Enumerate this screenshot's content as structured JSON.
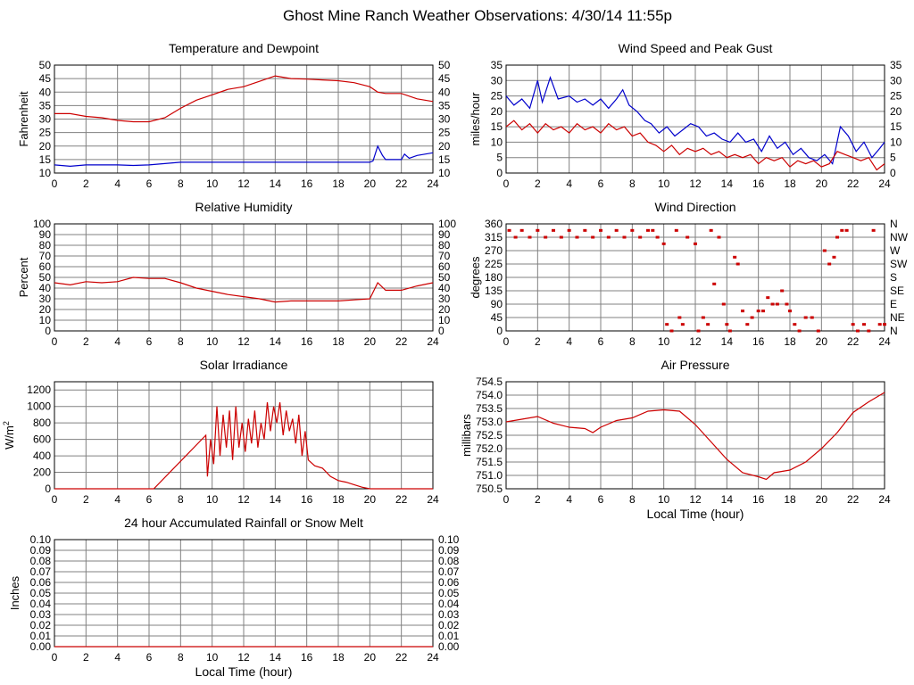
{
  "page_title": "Ghost Mine Ranch Weather Observations: 4/30/14 11:55p",
  "colors": {
    "primary": "#cc0000",
    "secondary": "#0000cc",
    "grid": "#808080",
    "background": "#ffffff"
  },
  "chart_data": [
    {
      "id": "temp",
      "type": "line",
      "title": "Temperature and Dewpoint",
      "xlabel": "",
      "ylabel": "Fahrenheit",
      "xlim": [
        0,
        24
      ],
      "ylim": [
        10,
        50
      ],
      "xticks": [
        "0",
        "2",
        "4",
        "6",
        "8",
        "10",
        "12",
        "14",
        "16",
        "18",
        "20",
        "22",
        "24"
      ],
      "yticks": [
        "10",
        "15",
        "20",
        "25",
        "30",
        "35",
        "40",
        "45",
        "50"
      ],
      "right_ticks": [
        "10",
        "15",
        "20",
        "25",
        "30",
        "35",
        "40",
        "45",
        "50"
      ],
      "grid": true,
      "series": [
        {
          "name": "Temperature",
          "color": "#cc0000",
          "x": [
            0,
            1,
            2,
            3,
            4,
            5,
            6,
            7,
            8,
            9,
            10,
            11,
            12,
            13,
            14,
            15,
            16,
            17,
            18,
            19,
            20,
            20.5,
            21,
            22,
            23,
            24
          ],
          "y": [
            32,
            32,
            31,
            30.5,
            29.5,
            29,
            29,
            30.5,
            34,
            37,
            39,
            41,
            42,
            44,
            46,
            45,
            44.8,
            44.5,
            44.2,
            43.5,
            42,
            40,
            39.5,
            39.5,
            37.5,
            36.5
          ]
        },
        {
          "name": "Dewpoint",
          "color": "#0000cc",
          "x": [
            0,
            1,
            2,
            3,
            4,
            5,
            6,
            7,
            8,
            9,
            10,
            11,
            12,
            13,
            14,
            15,
            16,
            17,
            18,
            19,
            20,
            20.2,
            20.5,
            20.8,
            21,
            22,
            22.2,
            22.5,
            23,
            24
          ],
          "y": [
            13,
            12.5,
            13,
            13,
            13,
            12.8,
            13,
            13.5,
            14,
            14,
            14,
            14,
            14,
            14,
            14,
            14,
            14,
            14,
            14,
            14,
            14,
            14.5,
            20,
            16.5,
            15,
            15,
            17,
            15.5,
            16.5,
            17.5
          ]
        }
      ]
    },
    {
      "id": "wind",
      "type": "line",
      "title": "Wind Speed and Peak Gust",
      "xlabel": "",
      "ylabel": "miles/hour",
      "xlim": [
        0,
        24
      ],
      "ylim": [
        0,
        35
      ],
      "xticks": [
        "0",
        "2",
        "4",
        "6",
        "8",
        "10",
        "12",
        "14",
        "16",
        "18",
        "20",
        "22",
        "24"
      ],
      "yticks": [
        "0",
        "5",
        "10",
        "15",
        "20",
        "25",
        "30",
        "35"
      ],
      "right_ticks": [
        "0",
        "5",
        "10",
        "15",
        "20",
        "25",
        "30",
        "35"
      ],
      "grid": true,
      "series": [
        {
          "name": "Peak Gust",
          "color": "#0000cc",
          "x": [
            0,
            0.5,
            1,
            1.5,
            2,
            2.3,
            2.8,
            3.3,
            4,
            4.5,
            5,
            5.5,
            6,
            6.5,
            7,
            7.4,
            7.8,
            8.3,
            8.8,
            9.2,
            9.7,
            10.2,
            10.7,
            11.2,
            11.7,
            12.2,
            12.7,
            13.2,
            13.7,
            14.2,
            14.7,
            15.2,
            15.7,
            16.2,
            16.7,
            17.2,
            17.7,
            18.2,
            18.7,
            19.2,
            19.7,
            20.2,
            20.7,
            21.2,
            21.7,
            22.2,
            22.7,
            23.2,
            23.7,
            24
          ],
          "y": [
            25,
            22,
            24,
            21,
            30,
            23,
            31,
            24,
            25,
            23,
            24,
            22,
            24,
            21,
            24,
            27,
            22,
            20,
            17,
            16,
            13,
            15,
            12,
            14,
            16,
            15,
            12,
            13,
            11,
            10,
            13,
            10,
            11,
            7,
            12,
            8,
            10,
            6,
            8,
            5,
            4,
            6,
            3,
            15,
            12,
            7,
            10,
            5,
            8,
            10
          ]
        },
        {
          "name": "Wind Speed",
          "color": "#cc0000",
          "x": [
            0,
            0.5,
            1,
            1.5,
            2,
            2.5,
            3,
            3.5,
            4,
            4.5,
            5,
            5.5,
            6,
            6.5,
            7,
            7.5,
            8,
            8.5,
            9,
            9.5,
            10,
            10.5,
            11,
            11.5,
            12,
            12.5,
            13,
            13.5,
            14,
            14.5,
            15,
            15.5,
            16,
            16.5,
            17,
            17.5,
            18,
            18.5,
            19,
            19.5,
            20,
            20.5,
            21,
            21.5,
            22,
            22.5,
            23,
            23.5,
            24
          ],
          "y": [
            15,
            17,
            14,
            16,
            13,
            16,
            14,
            15,
            13,
            16,
            14,
            15,
            13,
            16,
            14,
            15,
            12,
            13,
            10,
            9,
            7,
            9,
            6,
            8,
            7,
            8,
            6,
            7,
            5,
            6,
            5,
            6,
            3,
            5,
            4,
            5,
            2,
            4,
            3,
            4,
            2,
            3,
            7,
            6,
            5,
            4,
            5,
            1,
            3
          ]
        }
      ]
    },
    {
      "id": "humidity",
      "type": "line",
      "title": "Relative Humidity",
      "xlabel": "",
      "ylabel": "Percent",
      "xlim": [
        0,
        24
      ],
      "ylim": [
        0,
        100
      ],
      "xticks": [
        "0",
        "2",
        "4",
        "6",
        "8",
        "10",
        "12",
        "14",
        "16",
        "18",
        "20",
        "22",
        "24"
      ],
      "yticks": [
        "0",
        "10",
        "20",
        "30",
        "40",
        "50",
        "60",
        "70",
        "80",
        "90",
        "100"
      ],
      "right_ticks": [
        "0",
        "10",
        "20",
        "30",
        "40",
        "50",
        "60",
        "70",
        "80",
        "90",
        "100"
      ],
      "grid": true,
      "series": [
        {
          "name": "Relative Humidity",
          "color": "#cc0000",
          "x": [
            0,
            1,
            2,
            3,
            4,
            5,
            6,
            7,
            8,
            9,
            10,
            11,
            12,
            13,
            14,
            15,
            16,
            17,
            18,
            19,
            20,
            20.5,
            21,
            22,
            23,
            24
          ],
          "y": [
            45,
            43,
            46,
            45,
            46,
            50,
            49,
            49,
            45,
            40,
            37,
            34,
            32,
            30,
            27,
            28,
            28,
            28,
            28,
            29,
            30,
            45,
            38,
            38,
            42,
            45
          ]
        }
      ]
    },
    {
      "id": "direction",
      "type": "scatter",
      "title": "Wind Direction",
      "xlabel": "",
      "ylabel": "degrees",
      "xlim": [
        0,
        24
      ],
      "ylim": [
        0,
        360
      ],
      "xticks": [
        "0",
        "2",
        "4",
        "6",
        "8",
        "10",
        "12",
        "14",
        "16",
        "18",
        "20",
        "22",
        "24"
      ],
      "yticks": [
        "0",
        "45",
        "90",
        "135",
        "180",
        "225",
        "270",
        "315",
        "360"
      ],
      "right_ticks": [
        "N",
        "NE",
        "E",
        "SE",
        "S",
        "SW",
        "W",
        "NW",
        "N"
      ],
      "grid": true,
      "series": [
        {
          "name": "Wind Direction",
          "color": "#cc0000",
          "x": [
            0.2,
            0.6,
            1,
            1.5,
            2,
            2.5,
            3,
            3.5,
            4,
            4.5,
            5,
            5.5,
            6,
            6.5,
            7,
            7.5,
            8,
            8.5,
            9,
            9.3,
            9.6,
            10,
            10.2,
            10.5,
            10.8,
            11,
            11.2,
            11.5,
            12,
            12.2,
            12.5,
            12.8,
            13,
            13.2,
            13.5,
            13.8,
            14,
            14.2,
            14.5,
            14.7,
            15,
            15.3,
            15.6,
            16,
            16.3,
            16.6,
            16.9,
            17.2,
            17.5,
            17.8,
            18,
            18.3,
            18.6,
            19,
            19.4,
            19.8,
            20.2,
            20.5,
            20.8,
            21,
            21.3,
            21.6,
            22,
            22.3,
            22.7,
            23,
            23.3,
            23.7,
            24
          ],
          "y": [
            338,
            315,
            338,
            315,
            338,
            315,
            338,
            315,
            338,
            315,
            338,
            315,
            338,
            315,
            338,
            315,
            338,
            315,
            338,
            338,
            315,
            293,
            22,
            0,
            338,
            45,
            22,
            315,
            293,
            0,
            45,
            22,
            338,
            158,
            315,
            90,
            22,
            0,
            248,
            225,
            67,
            22,
            45,
            67,
            67,
            112,
            90,
            90,
            135,
            90,
            67,
            22,
            0,
            45,
            45,
            0,
            270,
            225,
            248,
            315,
            338,
            338,
            22,
            0,
            22,
            0,
            338,
            22,
            22
          ]
        }
      ]
    },
    {
      "id": "solar",
      "type": "line",
      "title": "Solar Irradiance",
      "xlabel": "",
      "ylabel": "W/m²",
      "ylabel_base": "W/m",
      "ylabel_sup": "2",
      "xlim": [
        0,
        24
      ],
      "ylim": [
        0,
        1300
      ],
      "xticks": [
        "0",
        "2",
        "4",
        "6",
        "8",
        "10",
        "12",
        "14",
        "16",
        "18",
        "20",
        "22",
        "24"
      ],
      "yticks": [
        "0",
        "200",
        "400",
        "600",
        "800",
        "1000",
        "1200"
      ],
      "right_ticks": [],
      "grid": true,
      "series": [
        {
          "name": "Solar Irradiance",
          "color": "#cc0000",
          "x": [
            0,
            6.3,
            9.6,
            9.7,
            9.9,
            10.1,
            10.3,
            10.5,
            10.7,
            10.9,
            11.1,
            11.3,
            11.5,
            11.7,
            11.9,
            12.1,
            12.3,
            12.5,
            12.7,
            12.9,
            13.1,
            13.3,
            13.5,
            13.7,
            13.9,
            14.1,
            14.3,
            14.5,
            14.7,
            14.9,
            15.1,
            15.3,
            15.5,
            15.7,
            15.9,
            16.1,
            16.5,
            17,
            17.5,
            18,
            18.5,
            19,
            19.5,
            20,
            24
          ],
          "y": [
            0,
            0,
            650,
            150,
            600,
            300,
            1000,
            400,
            900,
            500,
            950,
            350,
            1000,
            500,
            800,
            450,
            850,
            550,
            950,
            500,
            800,
            600,
            1050,
            700,
            1000,
            800,
            1050,
            650,
            950,
            700,
            850,
            550,
            900,
            400,
            700,
            350,
            280,
            250,
            150,
            100,
            80,
            50,
            20,
            0,
            0
          ]
        }
      ]
    },
    {
      "id": "pressure",
      "type": "line",
      "title": "Air Pressure",
      "xlabel": "Local Time (hour)",
      "ylabel": "millibars",
      "xlim": [
        0,
        24
      ],
      "ylim": [
        750.5,
        754.5
      ],
      "xticks": [
        "0",
        "2",
        "4",
        "6",
        "8",
        "10",
        "12",
        "14",
        "16",
        "18",
        "20",
        "22",
        "24"
      ],
      "yticks": [
        "750.5",
        "751.0",
        "751.5",
        "752.0",
        "752.5",
        "753.0",
        "753.5",
        "754.0",
        "754.5"
      ],
      "right_ticks": [],
      "grid": true,
      "series": [
        {
          "name": "Air Pressure",
          "color": "#cc0000",
          "x": [
            0,
            1,
            2,
            3,
            4,
            5,
            5.5,
            6,
            7,
            8,
            9,
            10,
            11,
            12,
            13,
            14,
            15,
            16,
            16.5,
            17,
            18,
            19,
            20,
            21,
            22,
            23,
            24
          ],
          "y": [
            753.0,
            753.1,
            753.2,
            752.95,
            752.8,
            752.75,
            752.6,
            752.8,
            753.05,
            753.15,
            753.4,
            753.45,
            753.4,
            752.9,
            752.25,
            751.6,
            751.1,
            750.95,
            750.85,
            751.1,
            751.2,
            751.5,
            752.0,
            752.6,
            753.35,
            753.75,
            754.1
          ]
        }
      ]
    },
    {
      "id": "rain",
      "type": "line",
      "title": "24 hour Accumulated Rainfall or Snow Melt",
      "xlabel": "Local Time (hour)",
      "ylabel": "Inches",
      "xlim": [
        0,
        24
      ],
      "ylim": [
        0,
        0.1
      ],
      "xticks": [
        "0",
        "2",
        "4",
        "6",
        "8",
        "10",
        "12",
        "14",
        "16",
        "18",
        "20",
        "22",
        "24"
      ],
      "yticks": [
        "0.00",
        "0.01",
        "0.02",
        "0.03",
        "0.04",
        "0.05",
        "0.06",
        "0.07",
        "0.08",
        "0.09",
        "0.10"
      ],
      "right_ticks": [
        "0.00",
        "0.01",
        "0.02",
        "0.03",
        "0.04",
        "0.05",
        "0.06",
        "0.07",
        "0.08",
        "0.09",
        "0.10"
      ],
      "grid": true,
      "series": [
        {
          "name": "Rainfall",
          "color": "#cc0000",
          "x": [
            0,
            24
          ],
          "y": [
            0,
            0
          ]
        }
      ]
    }
  ]
}
